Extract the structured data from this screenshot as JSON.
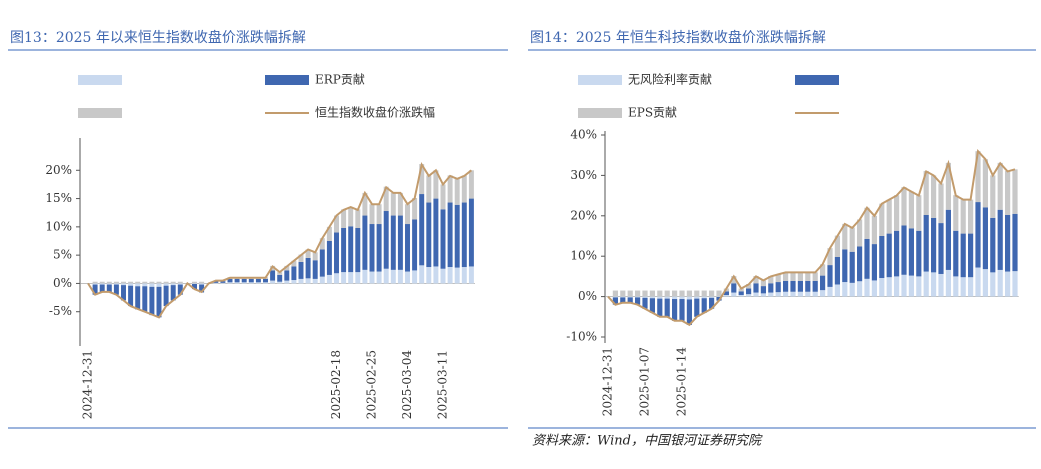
{
  "chart_data": [
    {
      "type": "bar",
      "stacked": true,
      "title": "图13：2025 年以来恒生指数收盘价涨跌幅拆解",
      "categories": [
        "2024-12-31",
        null,
        null,
        null,
        null,
        null,
        null,
        null,
        null,
        null,
        null,
        null,
        null,
        null,
        null,
        null,
        null,
        null,
        null,
        null,
        null,
        null,
        null,
        null,
        null,
        null,
        null,
        null,
        null,
        null,
        null,
        null,
        null,
        null,
        null,
        "2025-02-18",
        null,
        null,
        null,
        null,
        "2025-02-25",
        null,
        null,
        null,
        null,
        "2025-03-04",
        null,
        null,
        null,
        null,
        "2025-03-11",
        null,
        null,
        null,
        null
      ],
      "series": [
        {
          "name": null,
          "color": "#c9d9ef",
          "values": [
            0,
            -0.2,
            -0.2,
            -0.2,
            -0.2,
            -0.3,
            -0.4,
            -0.5,
            -0.5,
            -0.6,
            -0.6,
            -0.4,
            -0.3,
            -0.2,
            0,
            -0.1,
            -0.2,
            0,
            0.1,
            0.1,
            0.2,
            0.2,
            0.2,
            0.2,
            0.2,
            0.2,
            0.5,
            0.3,
            0.5,
            0.6,
            0.8,
            0.9,
            0.8,
            1.2,
            1.5,
            1.8,
            2,
            2,
            2,
            2.4,
            2.1,
            2.1,
            2.6,
            2.4,
            2.4,
            2.1,
            2.3,
            3.2,
            2.9,
            3,
            2.6,
            2.9,
            2.8,
            2.9,
            3
          ]
        },
        {
          "name": "ERP贡献",
          "color": "#3f67b0",
          "values": [
            0,
            -1.8,
            -1.4,
            -1.4,
            -1.8,
            -2.7,
            -3.6,
            -4.1,
            -4.5,
            -5,
            -5.4,
            -3.6,
            -2.7,
            -1.8,
            0,
            -0.9,
            -1.4,
            0,
            0.3,
            0.3,
            0.6,
            0.6,
            0.6,
            0.6,
            0.6,
            0.6,
            1.8,
            1.2,
            1.8,
            2.4,
            3,
            3.6,
            3.3,
            4.8,
            6,
            7.2,
            7.8,
            8.1,
            7.8,
            9.6,
            8.4,
            8.4,
            10.2,
            9.6,
            9.6,
            8.4,
            9,
            12.6,
            11.4,
            12,
            10.5,
            11.4,
            11.1,
            11.4,
            12
          ]
        },
        {
          "name": null,
          "color": "#c8c8c8",
          "values": [
            0,
            0.3,
            0.3,
            0.3,
            0.3,
            0.3,
            0.3,
            0.3,
            0.3,
            0.3,
            0.3,
            0.3,
            0.3,
            0.3,
            0,
            0.3,
            0.3,
            0,
            0.1,
            0.1,
            0.3,
            0.3,
            0.3,
            0.3,
            0.3,
            0.3,
            0.8,
            0.5,
            0.8,
            1,
            1.3,
            1.5,
            1.4,
            2,
            2.5,
            3,
            3.3,
            3.4,
            3.3,
            4,
            3.5,
            3.5,
            4.3,
            4,
            4,
            3.5,
            3.8,
            5.3,
            4.8,
            5,
            4.4,
            4.8,
            4.6,
            4.8,
            5
          ]
        }
      ],
      "line": {
        "name": "恒生指数收盘价涨跌幅",
        "color": "#c29b6c",
        "values": [
          0,
          -2,
          -1.5,
          -1.5,
          -2,
          -3,
          -4,
          -4.5,
          -5,
          -5.5,
          -6,
          -4,
          -3,
          -2,
          0,
          -1,
          -1.5,
          0,
          0.5,
          0.5,
          1,
          1,
          1,
          1,
          1,
          1,
          3,
          2,
          3,
          4,
          5,
          6,
          5.5,
          8,
          10,
          12,
          13,
          13.5,
          13,
          16,
          14,
          14,
          17,
          16,
          16,
          14,
          15,
          21,
          19,
          20,
          17.5,
          19,
          18.5,
          19,
          20
        ]
      },
      "ylim": [
        -10,
        25
      ],
      "yticks": [
        {
          "value": -5,
          "label": "-5%"
        },
        {
          "value": 0,
          "label": "0%"
        },
        {
          "value": 5,
          "label": "5%"
        },
        {
          "value": 10,
          "label": "10%"
        },
        {
          "value": 15,
          "label": "15%"
        },
        {
          "value": 20,
          "label": "20%"
        }
      ]
    },
    {
      "type": "bar",
      "stacked": true,
      "title": "图14：2025 年恒生科技指数收盘价涨跌幅拆解",
      "categories": [
        "2024-12-31",
        null,
        null,
        null,
        null,
        "2025-01-07",
        null,
        null,
        null,
        null,
        "2025-01-14",
        null,
        null,
        null,
        null,
        null,
        null,
        null,
        null,
        null,
        null,
        null,
        null,
        null,
        null,
        null,
        null,
        null,
        null,
        null,
        null,
        null,
        null,
        null,
        null,
        null,
        null,
        null,
        null,
        null,
        null,
        null,
        null,
        null,
        null,
        null,
        null,
        null,
        null,
        null,
        null,
        null,
        null,
        null,
        null,
        null
      ],
      "series": [
        {
          "name": "无风险利率贡献",
          "color": "#c9d9ef",
          "values": [
            0,
            -0.2,
            -0.2,
            -0.2,
            -0.2,
            -0.3,
            -0.4,
            -0.5,
            -0.5,
            -0.6,
            -0.6,
            -0.7,
            -0.5,
            -0.4,
            -0.3,
            -0.1,
            0.4,
            1,
            0.4,
            0.6,
            1,
            0.8,
            1,
            1.1,
            1.2,
            1.2,
            1.2,
            1.2,
            1.2,
            1.6,
            2.4,
            3,
            3.6,
            3.4,
            3.8,
            4.4,
            4,
            4.6,
            4.8,
            5,
            5.4,
            5.2,
            5,
            6.2,
            6,
            5.6,
            6.6,
            5,
            4.8,
            4.8,
            7.2,
            6.8,
            6,
            6.6,
            6.2,
            6.3
          ]
        },
        {
          "name": null,
          "color": "#3f67b0",
          "values": [
            0,
            -1.8,
            -1.4,
            -1.4,
            -1.8,
            -2.7,
            -3.6,
            -4.5,
            -4.5,
            -5.4,
            -5.4,
            -6.3,
            -4.5,
            -3.6,
            -2.7,
            -0.9,
            0.9,
            2.3,
            0.9,
            1.4,
            2.3,
            1.8,
            2.3,
            2.5,
            2.7,
            2.7,
            2.7,
            2.7,
            2.7,
            3.6,
            5.4,
            6.8,
            8.1,
            7.7,
            8.6,
            9.9,
            9,
            10.4,
            10.8,
            11.3,
            12.2,
            11.7,
            11.3,
            14,
            13.5,
            12.6,
            14.9,
            11.3,
            10.8,
            10.8,
            16.2,
            15.3,
            13.5,
            14.9,
            14,
            14.2
          ]
        },
        {
          "name": "EPS贡献",
          "color": "#c8c8c8",
          "values": [
            0,
            1.5,
            1.5,
            1.5,
            1.5,
            1.5,
            1.5,
            1.5,
            1.5,
            1.5,
            1.5,
            1.5,
            1.5,
            1.5,
            1.5,
            1.5,
            0.7,
            1.8,
            0.7,
            1.1,
            1.8,
            1.4,
            1.8,
            1.9,
            2.1,
            2.1,
            2.1,
            2.1,
            2.1,
            2.8,
            4.2,
            5.3,
            6.3,
            6,
            6.7,
            7.7,
            7,
            8,
            8.4,
            8.8,
            9.5,
            9.1,
            8.8,
            10.9,
            10.5,
            9.8,
            11.6,
            8.8,
            8.4,
            8.4,
            12.6,
            11.9,
            10.5,
            11.6,
            10.9,
            11
          ]
        }
      ],
      "line": {
        "name": null,
        "color": "#c29b6c",
        "values": [
          0,
          -2,
          -1.5,
          -1.5,
          -2,
          -3,
          -4,
          -5,
          -5,
          -6,
          -6,
          -7,
          -5,
          -4,
          -3,
          -1,
          2,
          5,
          2,
          3,
          5,
          4,
          5,
          5.5,
          6,
          6,
          6,
          6,
          6,
          8,
          12,
          15,
          18,
          17,
          19,
          22,
          20,
          23,
          24,
          25,
          27,
          26,
          25,
          31,
          30,
          28,
          33,
          25,
          24,
          24,
          36,
          34,
          30,
          33,
          31,
          31.5
        ]
      },
      "ylim": [
        -10,
        40
      ],
      "yticks": [
        {
          "value": -10,
          "label": "-10%"
        },
        {
          "value": 0,
          "label": "0%"
        },
        {
          "value": 10,
          "label": "10%"
        },
        {
          "value": 20,
          "label": "20%"
        },
        {
          "value": 30,
          "label": "30%"
        },
        {
          "value": 40,
          "label": "40%"
        }
      ]
    }
  ],
  "source": "资料来源：Wind，中国银河证券研究院"
}
